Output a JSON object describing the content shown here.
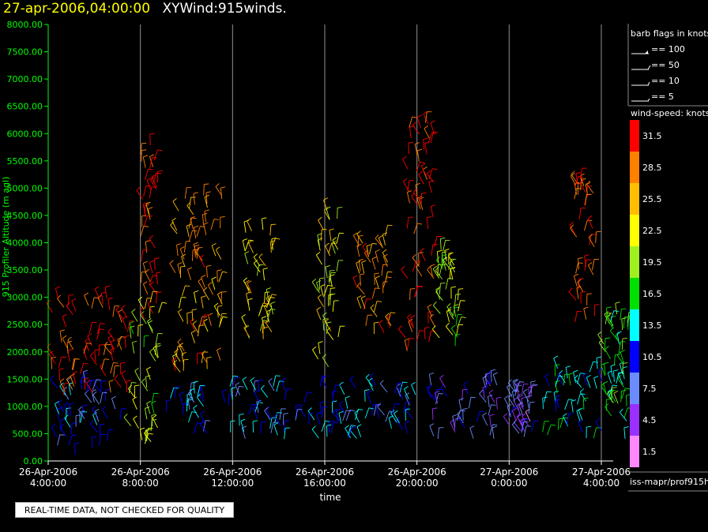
{
  "header": {
    "datetime": "27-apr-2006,04:00:00",
    "name": "XYWind:915winds."
  },
  "quality_note": "REAL-TIME DATA, NOT CHECKED FOR QUALITY",
  "chart_data": {
    "type": "scatter",
    "ylabel": "915 Profiler Altitude (m agl)",
    "xlabel": "time",
    "ylim": [
      0,
      8000
    ],
    "yticks": [
      "0.00",
      "500.00",
      "1000.00",
      "1500.00",
      "2000.00",
      "2500.00",
      "3000.00",
      "3500.00",
      "4000.00",
      "4500.00",
      "5000.00",
      "5500.00",
      "6000.00",
      "6500.00",
      "7000.00",
      "7500.00",
      "8000.00"
    ],
    "xrange_hours": [
      0,
      25.4
    ],
    "xticks": [
      {
        "l1": "26-Apr-2006",
        "l2": "4:00:00",
        "h": 0
      },
      {
        "l1": "26-Apr-2006",
        "l2": "8:00:00",
        "h": 4
      },
      {
        "l1": "26-Apr-2006",
        "l2": "12:00:00",
        "h": 8
      },
      {
        "l1": "26-Apr-2006",
        "l2": "16:00:00",
        "h": 12
      },
      {
        "l1": "26-Apr-2006",
        "l2": "20:00:00",
        "h": 16
      },
      {
        "l1": "27-Apr-2006",
        "l2": "0:00:00",
        "h": 20
      },
      {
        "l1": "27-Apr-2006",
        "l2": "4:00:00",
        "h": 24
      }
    ],
    "grid": "vertical",
    "barb_legend": {
      "title": "barb flags in knots",
      "items": [
        "== 100",
        "== 50",
        "== 10",
        "== 5"
      ]
    },
    "speed_legend": {
      "title": "wind-speed: knots",
      "bins": [
        {
          "label": "31.5",
          "color": "#ff0000"
        },
        {
          "label": "28.5",
          "color": "#ff7f00"
        },
        {
          "label": "25.5",
          "color": "#ffbf00"
        },
        {
          "label": "22.5",
          "color": "#ffff00"
        },
        {
          "label": "19.5",
          "color": "#a0f020"
        },
        {
          "label": "16.5",
          "color": "#00e000"
        },
        {
          "label": "13.5",
          "color": "#00ffff"
        },
        {
          "label": "10.5",
          "color": "#0000ff"
        },
        {
          "label": "7.5",
          "color": "#6a8cff"
        },
        {
          "label": "4.5",
          "color": "#9a30ff"
        },
        {
          "label": "1.5",
          "color": "#ff88ff"
        }
      ]
    },
    "source": "iss-mapr/prof915h",
    "series": [
      {
        "profile_blocks": [
          {
            "h0": 0.1,
            "h1": 3.2,
            "alt0": 100,
            "alt1": 1500,
            "speed": 10
          },
          {
            "h0": 0.1,
            "h1": 3.5,
            "alt0": 1200,
            "alt1": 3000,
            "speed": 31
          },
          {
            "h0": 3.5,
            "h1": 4.8,
            "alt0": 300,
            "alt1": 2800,
            "speed": 20
          },
          {
            "h0": 4.0,
            "h1": 4.8,
            "alt0": 2500,
            "alt1": 5900,
            "speed": 30
          },
          {
            "h0": 5.5,
            "h1": 7.6,
            "alt0": 1500,
            "alt1": 5000,
            "speed": 27
          },
          {
            "h0": 8.5,
            "h1": 9.8,
            "alt0": 2200,
            "alt1": 4300,
            "speed": 24
          },
          {
            "h0": 4.8,
            "h1": 16.0,
            "alt0": 400,
            "alt1": 1400,
            "speed": 11
          },
          {
            "h0": 11.7,
            "h1": 12.6,
            "alt0": 1600,
            "alt1": 4600,
            "speed": 22
          },
          {
            "h0": 13.3,
            "h1": 14.9,
            "alt0": 2300,
            "alt1": 4200,
            "speed": 28
          },
          {
            "h0": 15.5,
            "h1": 16.8,
            "alt0": 2000,
            "alt1": 6200,
            "speed": 31
          },
          {
            "h0": 16.9,
            "h1": 17.8,
            "alt0": 2000,
            "alt1": 3900,
            "speed": 19
          },
          {
            "h0": 16.5,
            "h1": 19.6,
            "alt0": 300,
            "alt1": 1500,
            "speed": 7
          },
          {
            "h0": 20.0,
            "h1": 21.0,
            "alt0": 400,
            "alt1": 1300,
            "speed": 6
          },
          {
            "h0": 21.4,
            "h1": 25.2,
            "alt0": 400,
            "alt1": 1700,
            "speed": 14
          },
          {
            "h0": 22.8,
            "h1": 23.8,
            "alt0": 2500,
            "alt1": 5200,
            "speed": 30
          },
          {
            "h0": 24.1,
            "h1": 25.2,
            "alt0": 1000,
            "alt1": 2700,
            "speed": 17
          }
        ]
      }
    ]
  }
}
